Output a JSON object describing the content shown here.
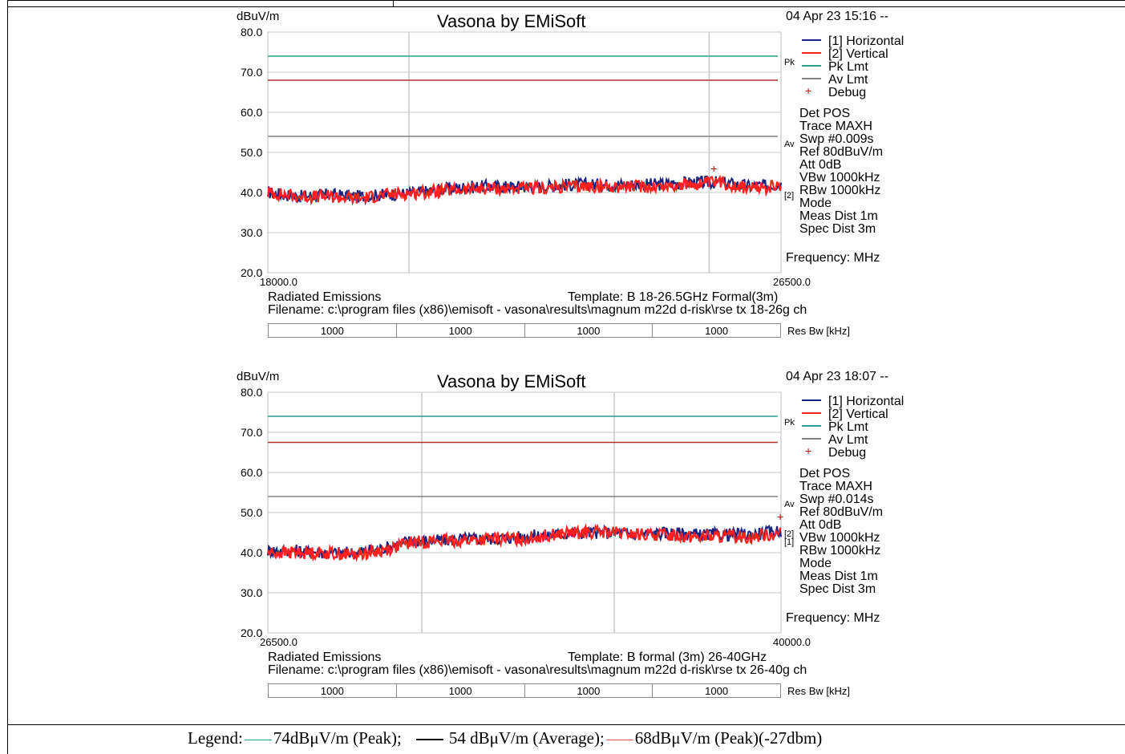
{
  "charts": [
    {
      "title": "Vasona by EMiSoft",
      "y_unit": "dBuV/m",
      "timestamp": "04 Apr 23 15:16 --",
      "legend": [
        "[1] Horizontal",
        "[2] Vertical",
        "Pk Lmt",
        "Av Lmt",
        "Debug"
      ],
      "settings": [
        "Det POS",
        "Trace MAXH",
        "Swp #0.009s",
        "Ref 80dBuV/m",
        "Att 0dB",
        "VBw 1000kHz",
        "RBw 1000kHz",
        "Mode",
        "Meas Dist 1m",
        "Spec Dist 3m"
      ],
      "freq_label": "Frequency: MHz",
      "pk_mark": "Pk",
      "av_mark": "Av",
      "trace_mark": "[2]",
      "footer_left": "Radiated Emissions",
      "template": "Template: B 18-26.5GHz Formal(3m)",
      "filename": "Filename: c:\\program files (x86)\\emisoft - vasona\\results\\magnum m22d d-risk\\rse tx 18-26g ch",
      "resbw_values": [
        "1000",
        "1000",
        "1000",
        "1000"
      ],
      "resbw_label": "Res Bw [kHz]"
    },
    {
      "title": "Vasona by EMiSoft",
      "y_unit": "dBuV/m",
      "timestamp": "04 Apr 23 18:07 --",
      "legend": [
        "[1] Horizontal",
        "[2] Vertical",
        "Pk Lmt",
        "Av Lmt",
        "Debug"
      ],
      "settings": [
        "Det POS",
        "Trace MAXH",
        "Swp #0.014s",
        "Ref 80dBuV/m",
        "Att 0dB",
        "VBw 1000kHz",
        "RBw 1000kHz",
        "Mode",
        "Meas Dist 1m",
        "Spec Dist 3m"
      ],
      "freq_label": "Frequency: MHz",
      "pk_mark": "Pk",
      "av_mark": "Av",
      "trace_mark": "[2][1]",
      "footer_left": "Radiated Emissions",
      "template": "Template: B formal (3m) 26-40GHz",
      "filename": "Filename: c:\\program files (x86)\\emisoft - vasona\\results\\magnum m22d d-risk\\rse tx 26-40g ch",
      "resbw_values": [
        "1000",
        "1000",
        "1000",
        "1000"
      ],
      "resbw_label": "Res Bw [kHz]"
    }
  ],
  "legend_bottom": {
    "prefix": "Legend:",
    "item1": "74dBμV/m (Peak);",
    "item2": "54 dBμV/m (Average);",
    "item3": "68dBμV/m  (Peak)(-27dbm)",
    "color1": "#2a9d8f",
    "color2": "#000000",
    "color3": "#e05050"
  },
  "chart_data": [
    {
      "type": "line",
      "title": "Vasona by EMiSoft",
      "xlabel": "Frequency: MHz",
      "ylabel": "dBuV/m",
      "xlim": [
        18000.0,
        26500.0
      ],
      "ylim": [
        20.0,
        80.0
      ],
      "x_ticks": [
        "18000.0",
        "26500.0"
      ],
      "y_ticks": [
        "80.0",
        "70.0",
        "60.0",
        "50.0",
        "40.0",
        "30.0",
        "20.0"
      ],
      "grid": true,
      "limit_lines": [
        {
          "name": "Pk Lmt",
          "value": 74,
          "color": "#2a9d8f"
        },
        {
          "name": "Av Lmt",
          "value": 54,
          "color": "#808080"
        },
        {
          "name": "",
          "value": 68,
          "color": "#b03030"
        }
      ],
      "series": [
        {
          "name": "[1] Horizontal",
          "color": "#1a237e",
          "x": [
            18000,
            18500,
            19000,
            19500,
            20000,
            20500,
            21000,
            21500,
            22000,
            22500,
            23000,
            23500,
            24000,
            24500,
            25000,
            25500,
            26000,
            26500
          ],
          "values": [
            40.0,
            39.0,
            39.5,
            39.0,
            39.5,
            40.0,
            41.0,
            41.5,
            41.5,
            41.5,
            42.0,
            42.0,
            42.0,
            42.0,
            42.5,
            42.5,
            41.5,
            42.0
          ]
        },
        {
          "name": "[2] Vertical",
          "color": "#ff2020",
          "x": [
            18000,
            18500,
            19000,
            19500,
            20000,
            20500,
            21000,
            21500,
            22000,
            22500,
            23000,
            23500,
            24000,
            24500,
            25000,
            25500,
            26000,
            26500
          ],
          "values": [
            40.0,
            39.0,
            39.0,
            38.5,
            39.5,
            40.0,
            40.5,
            41.0,
            41.0,
            41.0,
            41.5,
            41.5,
            41.5,
            41.5,
            42.0,
            42.5,
            41.0,
            41.5
          ]
        }
      ],
      "markers": [
        {
          "name": "Debug",
          "x": 25400,
          "y": 46
        }
      ]
    },
    {
      "type": "line",
      "title": "Vasona by EMiSoft",
      "xlabel": "Frequency: MHz",
      "ylabel": "dBuV/m",
      "xlim": [
        26500.0,
        40000.0
      ],
      "ylim": [
        20.0,
        80.0
      ],
      "x_ticks": [
        "26500.0",
        "40000.0"
      ],
      "y_ticks": [
        "80.0",
        "70.0",
        "60.0",
        "50.0",
        "40.0",
        "30.0",
        "20.0"
      ],
      "grid": true,
      "limit_lines": [
        {
          "name": "Pk Lmt",
          "value": 74,
          "color": "#2a9d8f"
        },
        {
          "name": "Av Lmt",
          "value": 54,
          "color": "#808080"
        },
        {
          "name": "",
          "value": 67.5,
          "color": "#b03030"
        }
      ],
      "series": [
        {
          "name": "[1] Horizontal",
          "color": "#1a237e",
          "x": [
            26500,
            27250,
            28000,
            28750,
            29500,
            30250,
            31000,
            31750,
            32500,
            33250,
            34000,
            34750,
            35500,
            36250,
            37000,
            37750,
            38500,
            39250,
            40000
          ],
          "values": [
            40.5,
            40.5,
            40.0,
            40.0,
            41.0,
            43.0,
            43.0,
            43.5,
            43.5,
            44.0,
            44.5,
            45.0,
            45.0,
            44.5,
            45.0,
            44.5,
            44.5,
            44.5,
            45.5
          ]
        },
        {
          "name": "[2] Vertical",
          "color": "#ff2020",
          "x": [
            26500,
            27250,
            28000,
            28750,
            29500,
            30250,
            31000,
            31750,
            32500,
            33250,
            34000,
            34750,
            35500,
            36250,
            37000,
            37750,
            38500,
            39250,
            40000
          ],
          "values": [
            40.0,
            40.0,
            40.0,
            39.5,
            40.5,
            42.5,
            43.0,
            43.0,
            43.5,
            43.5,
            44.5,
            45.0,
            45.0,
            44.5,
            44.5,
            44.0,
            44.0,
            44.0,
            45.0
          ]
        }
      ],
      "markers": [
        {
          "name": "Debug",
          "x": 40000,
          "y": 49
        }
      ]
    }
  ]
}
